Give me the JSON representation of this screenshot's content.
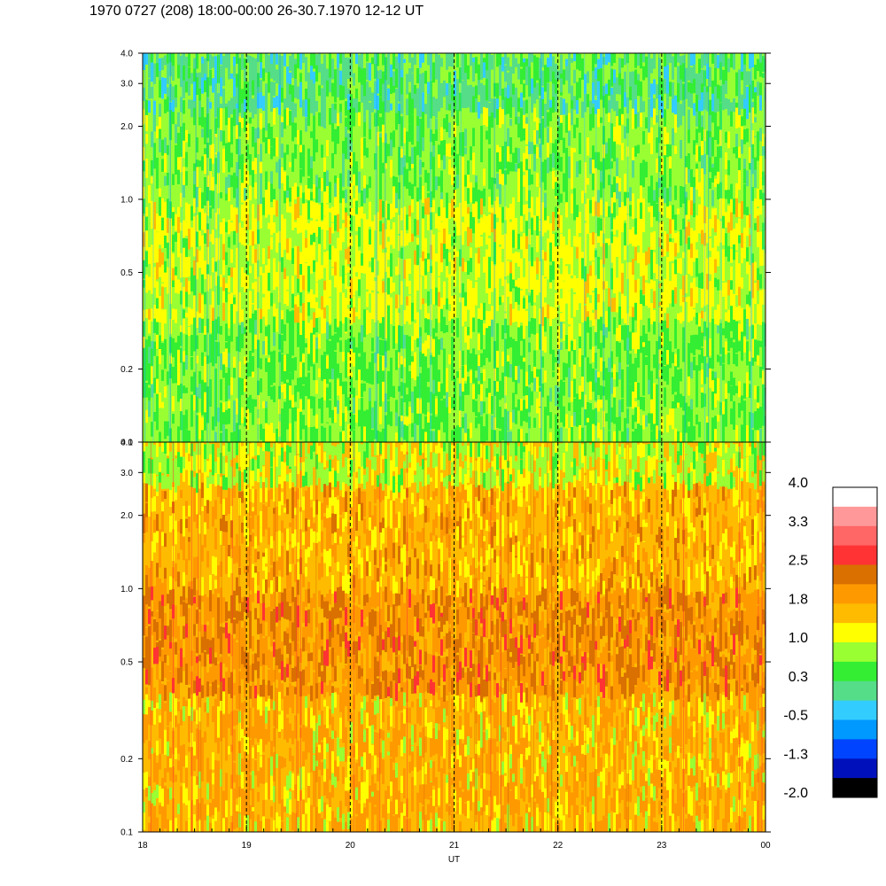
{
  "header": {
    "title": "1970 0727 (208) 18:00-00:00 26-30.7.1970  12-12 UT"
  },
  "chart_data": [
    {
      "type": "heatmap",
      "panel": "upper",
      "x_ticks": [
        "18",
        "19",
        "20",
        "21",
        "22",
        "23",
        "00"
      ],
      "y_scale": "log",
      "ylim": [
        0.1,
        4.0
      ],
      "y_ticks": [
        "4.0",
        "3.0",
        "2.0",
        "1.0",
        "0.5",
        "0.2",
        "0.1"
      ],
      "dominant_levels": [
        "0.3",
        "1.0"
      ],
      "vertical_dashed_lines_at": [
        "19",
        "20",
        "21",
        "22",
        "23"
      ]
    },
    {
      "type": "heatmap",
      "panel": "lower",
      "x_ticks": [
        "18",
        "19",
        "20",
        "21",
        "22",
        "23",
        "00"
      ],
      "xlabel": "UT",
      "y_scale": "log",
      "ylim": [
        0.1,
        4.0
      ],
      "y_ticks": [
        "4.0",
        "3.0",
        "2.0",
        "1.0",
        "0.5",
        "0.2",
        "0.1"
      ],
      "dominant_levels": [
        "1.0",
        "1.8",
        "2.5"
      ],
      "vertical_dashed_lines_at": [
        "19",
        "20",
        "21",
        "22",
        "23"
      ]
    }
  ],
  "colorbar": {
    "labels": [
      "4.0",
      "3.3",
      "2.5",
      "1.8",
      "1.0",
      "0.3",
      "-0.5",
      "-1.3",
      "-2.0"
    ],
    "colors": [
      "#ffffff",
      "#ff9999",
      "#ff6666",
      "#ff3333",
      "#d97000",
      "#ff9900",
      "#ffbb00",
      "#ffff00",
      "#99ff33",
      "#33ee33",
      "#55dd88",
      "#33ccff",
      "#0099ff",
      "#0044ff",
      "#0011bb",
      "#000000"
    ]
  }
}
